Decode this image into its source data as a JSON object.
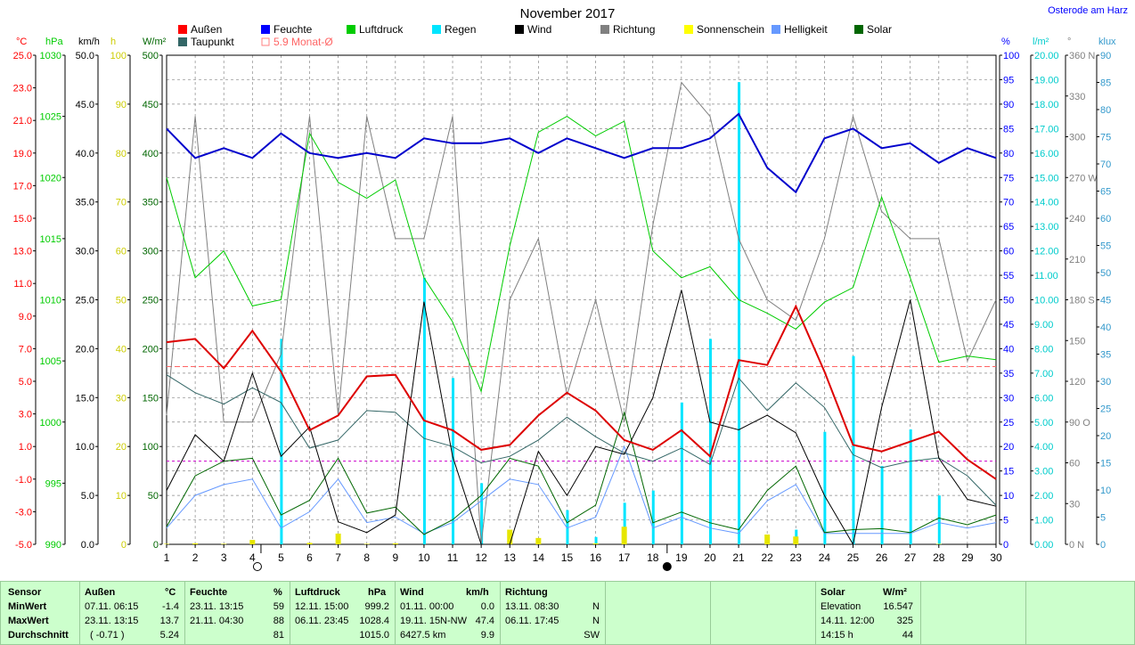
{
  "station": "Osterode am Harz",
  "chart_data": {
    "type": "line",
    "title": "November 2017",
    "x": [
      1,
      2,
      3,
      4,
      5,
      6,
      7,
      8,
      9,
      10,
      11,
      12,
      13,
      14,
      15,
      16,
      17,
      18,
      19,
      20,
      21,
      22,
      23,
      24,
      25,
      26,
      27,
      28,
      29,
      30
    ],
    "legend": [
      {
        "name": "Außen",
        "color": "#ff0000"
      },
      {
        "name": "Feuchte",
        "color": "#0000ff"
      },
      {
        "name": "Luftdruck",
        "color": "#00cc00"
      },
      {
        "name": "Regen",
        "color": "#00e5ff"
      },
      {
        "name": "Wind",
        "color": "#000000"
      },
      {
        "name": "Richtung",
        "color": "#808080"
      },
      {
        "name": "Sonnenschein",
        "color": "#ffff00"
      },
      {
        "name": "Helligkeit",
        "color": "#6699ff"
      },
      {
        "name": "Solar",
        "color": "#006600"
      },
      {
        "name": "Taupunkt",
        "color": "#336666"
      },
      {
        "name": "5.9 Monat-Ø",
        "color": "#ff8080"
      }
    ],
    "axes_left": [
      {
        "unit": "°C",
        "color": "#ff0000",
        "ticks": [
          "25.0",
          "23.0",
          "21.0",
          "19.0",
          "17.0",
          "15.0",
          "13.0",
          "11.0",
          "9.0",
          "7.0",
          "5.0",
          "3.0",
          "1.0",
          "-1.0",
          "-3.0",
          "-5.0"
        ],
        "range": [
          -5,
          25
        ]
      },
      {
        "unit": "hPa",
        "color": "#00cc00",
        "ticks": [
          "1030",
          "1025",
          "1020",
          "1015",
          "1010",
          "1005",
          "1000",
          "995",
          "990"
        ],
        "range": [
          990,
          1030
        ]
      },
      {
        "unit": "km/h",
        "color": "#000000",
        "ticks": [
          "50.0",
          "45.0",
          "40.0",
          "35.0",
          "30.0",
          "25.0",
          "20.0",
          "15.0",
          "10.0",
          "5.0",
          "0.0"
        ],
        "range": [
          0,
          50
        ]
      },
      {
        "unit": "h",
        "color": "#cccc00",
        "ticks": [
          "100",
          "90",
          "80",
          "70",
          "60",
          "50",
          "40",
          "30",
          "20",
          "10",
          "0"
        ],
        "range": [
          0,
          100
        ]
      },
      {
        "unit": "W/m²",
        "color": "#006600",
        "ticks": [
          "500",
          "450",
          "400",
          "350",
          "300",
          "250",
          "200",
          "150",
          "100",
          "50",
          "0"
        ],
        "range": [
          0,
          500
        ]
      }
    ],
    "axes_right": [
      {
        "unit": "%",
        "color": "#0000ff",
        "ticks": [
          "100",
          "95",
          "90",
          "85",
          "80",
          "75",
          "70",
          "65",
          "60",
          "55",
          "50",
          "45",
          "40",
          "35",
          "30",
          "25",
          "20",
          "15",
          "10",
          "5",
          "0"
        ],
        "range": [
          0,
          100
        ]
      },
      {
        "unit": "l/m²",
        "color": "#00cccc",
        "ticks": [
          "20.00",
          "19.00",
          "18.00",
          "17.00",
          "16.00",
          "15.00",
          "14.00",
          "13.00",
          "12.00",
          "11.00",
          "10.00",
          "9.00",
          "8.00",
          "7.00",
          "6.00",
          "5.00",
          "4.00",
          "3.00",
          "2.00",
          "1.00",
          "0.00"
        ],
        "range": [
          0,
          20
        ]
      },
      {
        "unit": "°",
        "color": "#808080",
        "ticks": [
          "360 N",
          "330",
          "300",
          "270 W",
          "240",
          "210",
          "180 S",
          "150",
          "120",
          "90 O",
          "60",
          "30",
          "0 N"
        ],
        "range": [
          0,
          360
        ]
      },
      {
        "unit": "klux",
        "color": "#3399cc",
        "ticks": [
          "90",
          "85",
          "80",
          "75",
          "70",
          "65",
          "60",
          "55",
          "50",
          "45",
          "40",
          "35",
          "30",
          "25",
          "20",
          "15",
          "10",
          "5",
          "0"
        ],
        "range": [
          0,
          90
        ]
      }
    ],
    "monthly_avg_temp": 5.9,
    "reference_line_wm2": 85,
    "series": [
      {
        "name": "Außen",
        "axis": "°C",
        "values": [
          7.4,
          7.6,
          5.8,
          8.1,
          5.6,
          2.0,
          2.9,
          5.3,
          5.4,
          2.6,
          2.0,
          0.8,
          1.1,
          2.9,
          4.3,
          3.2,
          1.4,
          0.8,
          2.0,
          0.4,
          6.3,
          6.0,
          9.6,
          5.6,
          1.1,
          0.7,
          1.3,
          1.9,
          0.2,
          -1.0
        ]
      },
      {
        "name": "Feuchte",
        "axis": "%",
        "values": [
          85,
          79,
          81,
          79,
          84,
          80,
          79,
          80,
          79,
          83,
          82,
          82,
          83,
          80,
          83,
          81,
          79,
          81,
          81,
          83,
          88,
          77,
          72,
          83,
          85,
          81,
          82,
          78,
          81,
          79
        ]
      },
      {
        "name": "Luftdruck",
        "axis": "hPa",
        "values": [
          1020.0,
          1011.8,
          1014.0,
          1009.5,
          1010.0,
          1023.6,
          1019.6,
          1018.3,
          1019.8,
          1011.8,
          1008.2,
          1002.5,
          1014.4,
          1023.7,
          1025.0,
          1023.4,
          1024.6,
          1014.0,
          1011.8,
          1012.7,
          1010.0,
          1008.9,
          1007.6,
          1009.8,
          1011.0,
          1018.4,
          1011.8,
          1004.9,
          1005.4,
          1005.1
        ]
      },
      {
        "name": "Regen",
        "axis": "l/m²",
        "values": [
          0.0,
          0.0,
          0.0,
          0.0,
          8.4,
          0.0,
          0.0,
          0.0,
          0.0,
          10.9,
          6.8,
          2.5,
          0.0,
          0.0,
          1.4,
          0.3,
          1.7,
          2.2,
          5.8,
          8.4,
          18.9,
          0.0,
          0.6,
          4.6,
          7.7,
          3.2,
          4.7,
          2.0,
          0.0,
          0.0
        ]
      },
      {
        "name": "Wind",
        "axis": "km/h",
        "values": [
          5.5,
          11.2,
          8.5,
          17.5,
          9.0,
          12.0,
          2.3,
          1.2,
          3.0,
          24.8,
          9.0,
          0.0,
          0.0,
          9.5,
          5.0,
          10.0,
          9.2,
          15.0,
          26.0,
          12.5,
          11.7,
          13.2,
          11.4,
          5.0,
          0.0,
          14.0,
          25.0,
          8.8,
          4.6,
          3.9
        ]
      },
      {
        "name": "Richtung",
        "axis": "°",
        "values": [
          95,
          315,
          90,
          90,
          140,
          315,
          95,
          315,
          225,
          225,
          315,
          0,
          180,
          225,
          110,
          180,
          90,
          235,
          340,
          315,
          225,
          180,
          165,
          225,
          315,
          245,
          225,
          225,
          135,
          180
        ]
      },
      {
        "name": "Taupunkt",
        "axis": "°C",
        "values": [
          5.4,
          4.3,
          3.6,
          4.6,
          3.7,
          0.9,
          1.4,
          3.2,
          3.1,
          1.5,
          1.0,
          0.0,
          0.4,
          1.4,
          2.8,
          1.6,
          0.6,
          0.1,
          0.9,
          -0.1,
          5.2,
          3.2,
          4.9,
          3.4,
          0.5,
          -0.3,
          0.1,
          0.3,
          -0.8,
          -2.6
        ]
      },
      {
        "name": "Solar",
        "axis": "W/m²",
        "values": [
          18,
          70,
          85,
          88,
          30,
          45,
          88,
          32,
          38,
          10,
          25,
          50,
          88,
          80,
          22,
          40,
          135,
          22,
          33,
          22,
          15,
          55,
          80,
          12,
          15,
          16,
          12,
          27,
          20,
          30
        ]
      },
      {
        "name": "Helligkeit",
        "axis": "klux",
        "values": [
          3,
          9,
          11,
          12,
          3,
          6,
          12,
          4,
          5,
          2,
          4,
          8,
          12,
          11,
          3,
          5,
          18,
          3,
          5,
          3,
          2,
          8,
          11,
          2,
          2,
          2,
          2,
          4,
          3,
          4
        ]
      },
      {
        "name": "Sonnenschein",
        "axis": "h",
        "values": [
          0.1,
          0.2,
          0.1,
          0.9,
          0.0,
          0.3,
          2.2,
          0.1,
          0.2,
          0.0,
          0.0,
          0.0,
          3.0,
          1.3,
          0.0,
          0.2,
          3.6,
          0.0,
          0.0,
          0.0,
          0.0,
          2.0,
          1.6,
          0.0,
          0.0,
          0.0,
          0.0,
          0.1,
          0.0,
          0.0
        ]
      }
    ],
    "moon_phases": [
      {
        "day": 4.3,
        "phase": "full"
      },
      {
        "day": 18.5,
        "phase": "new"
      }
    ]
  },
  "table": {
    "sensor": {
      "title": "Sensor",
      "rows": [
        "MinWert",
        "MaxWert",
        "Durchschnitt"
      ]
    },
    "aussen": {
      "title": "Außen",
      "unit": "°C",
      "rows": [
        [
          "07.11.  06:15",
          "-1.4"
        ],
        [
          "23.11.  13:15",
          "13.7"
        ],
        [
          "( -0.71 )",
          "5.24"
        ]
      ]
    },
    "feuchte": {
      "title": "Feuchte",
      "unit": "%",
      "rows": [
        [
          "23.11.  13:15",
          "59"
        ],
        [
          "21.11.  04:30",
          "88"
        ],
        [
          "",
          "81"
        ]
      ]
    },
    "luftdruck": {
      "title": "Luftdruck",
      "unit": "hPa",
      "rows": [
        [
          "12.11.  15:00",
          "999.2"
        ],
        [
          "06.11.  23:45",
          "1028.4"
        ],
        [
          "",
          "1015.0"
        ]
      ]
    },
    "wind": {
      "title": "Wind",
      "unit": "km/h",
      "rows": [
        [
          "01.11.  00:00",
          "0.0"
        ],
        [
          "19.11.  15N-NW",
          "47.4"
        ],
        [
          "6427.5 km",
          "9.9"
        ]
      ]
    },
    "richtung": {
      "title": "Richtung",
      "unit": "",
      "rows": [
        [
          "13.11.  08:30",
          "N"
        ],
        [
          "06.11.  17:45",
          "N"
        ],
        [
          "",
          "SW"
        ]
      ]
    },
    "solar": {
      "title": "Solar",
      "unit": "W/m²",
      "rows": [
        [
          "Elevation",
          "16.547"
        ],
        [
          "14.11.  12:00",
          "325"
        ],
        [
          "14:15 h",
          "44"
        ]
      ]
    }
  }
}
